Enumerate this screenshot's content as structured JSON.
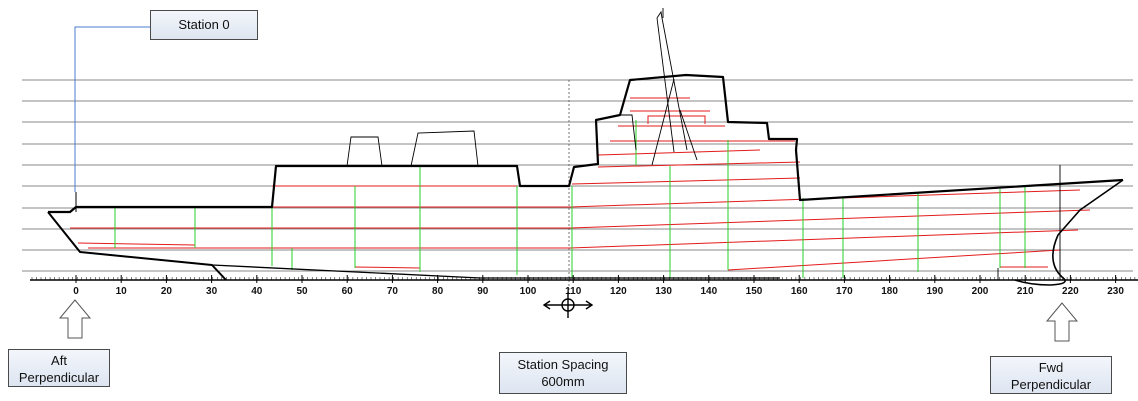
{
  "callouts": {
    "station0": "Station 0",
    "aft": {
      "line1": "Aft",
      "line2": "Perpendicular"
    },
    "spacing": {
      "line1": "Station Spacing",
      "line2": "600mm"
    },
    "fwd": {
      "line1": "Fwd",
      "line2": "Perpendicular"
    }
  },
  "axis": {
    "ticks": [
      0,
      10,
      20,
      30,
      40,
      50,
      60,
      70,
      80,
      90,
      100,
      110,
      120,
      130,
      140,
      150,
      160,
      170,
      180,
      190,
      200,
      210,
      220,
      230
    ]
  },
  "colors": {
    "hull": "#000000",
    "waterline": "#e31b1b",
    "frame": "#27d027",
    "grid": "#8a8a8a",
    "callout_border": "#4a4a4a"
  }
}
